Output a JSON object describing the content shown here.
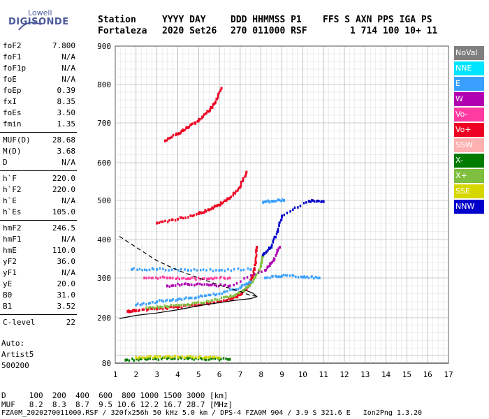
{
  "logo": {
    "line1": "Lowell",
    "line2": "DIGISONDE"
  },
  "header": {
    "row1": [
      "Station",
      "YYYY DAY",
      "DDD HHMMSS P1",
      "FFS S AXN PPS IGA PS"
    ],
    "row2": [
      "Fortaleza",
      "2020 Set26",
      "270 011000 RSF",
      "1 714 100 10+ 11"
    ]
  },
  "params": [
    {
      "name": "foF2",
      "value": "7.800"
    },
    {
      "name": "foF1",
      "value": "N/A"
    },
    {
      "name": "foF1p",
      "value": "N/A"
    },
    {
      "name": "foE",
      "value": "N/A"
    },
    {
      "name": "foEp",
      "value": "0.39"
    },
    {
      "name": "fxI",
      "value": "8.35"
    },
    {
      "name": "foEs",
      "value": "3.50"
    },
    {
      "name": "fmin",
      "value": "1.35"
    },
    {
      "name": "MUF(D)",
      "value": "28.68"
    },
    {
      "name": "M(D)",
      "value": "3.68"
    },
    {
      "name": "D",
      "value": "N/A"
    },
    {
      "name": "h`F",
      "value": "220.0"
    },
    {
      "name": "h`F2",
      "value": "220.0"
    },
    {
      "name": "h`E",
      "value": "N/A"
    },
    {
      "name": "h`Es",
      "value": "105.0"
    },
    {
      "name": "hmF2",
      "value": "246.5"
    },
    {
      "name": "hmF1",
      "value": "N/A"
    },
    {
      "name": "hmE",
      "value": "110.0"
    },
    {
      "name": "yF2",
      "value": "36.0"
    },
    {
      "name": "yF1",
      "value": "N/A"
    },
    {
      "name": "yE",
      "value": "20.0"
    },
    {
      "name": "B0",
      "value": "31.0"
    },
    {
      "name": "B1",
      "value": "3.52"
    },
    {
      "name": "C-level",
      "value": "22"
    }
  ],
  "auto": [
    "Auto:",
    "Artist5",
    "500200"
  ],
  "legend": [
    {
      "label": "NoVal",
      "color": "#7f7f7f"
    },
    {
      "label": "NNE",
      "color": "#00e5ff"
    },
    {
      "label": "E",
      "color": "#3aa0ff"
    },
    {
      "label": "W",
      "color": "#b000b0"
    },
    {
      "label": "Vo-",
      "color": "#ff3aa0"
    },
    {
      "label": "Vo+",
      "color": "#ee0022"
    },
    {
      "label": "SSW",
      "color": "#ffb0b0"
    },
    {
      "label": "X-",
      "color": "#007a00"
    },
    {
      "label": "X+",
      "color": "#7fbf3f"
    },
    {
      "label": "SSE",
      "color": "#d7d700"
    },
    {
      "label": "NNW",
      "color": "#0000cc"
    }
  ],
  "footer": {
    "row_d": "D     100  200  400  600  800 1000 1500 3000 [km]",
    "row_muf": "MUF   8.2  8.3  8.7  9.5 10.6 12.2 16.7 28.7 [MHz]",
    "info": "FZA0M_2020270011000.RSF / 320fx256h 50 kHz 5.0 km / DPS-4 FZA0M 904 / 3.9 S 321.6 E   Ion2Png 1.3.20"
  },
  "chart_data": {
    "type": "scatter",
    "x_ticks": [
      "1",
      "2",
      "3",
      "4",
      "5",
      "6",
      "7",
      "8",
      "9",
      "10",
      "11",
      "12",
      "13",
      "14",
      "15",
      "16",
      "17"
    ],
    "y_ticks": [
      "80",
      "200",
      "300",
      "400",
      "500",
      "600",
      "700",
      "800",
      "900"
    ],
    "xlim": [
      1,
      17
    ],
    "y_tick_values": [
      80,
      200,
      300,
      400,
      500,
      600,
      700,
      800,
      900
    ],
    "grid": true,
    "traces": [
      {
        "series": "Vo+",
        "points": [
          [
            1.6,
            216
          ],
          [
            2,
            218
          ],
          [
            3,
            222
          ],
          [
            4,
            226
          ],
          [
            5,
            232
          ],
          [
            6,
            240
          ],
          [
            6.6,
            248
          ],
          [
            7,
            258
          ],
          [
            7.3,
            272
          ],
          [
            7.6,
            300
          ],
          [
            7.75,
            340
          ],
          [
            7.8,
            380
          ]
        ]
      },
      {
        "series": "Vo+",
        "points": [
          [
            3,
            442
          ],
          [
            4,
            452
          ],
          [
            5,
            466
          ],
          [
            5.5,
            476
          ],
          [
            6,
            488
          ],
          [
            6.5,
            506
          ],
          [
            7,
            535
          ],
          [
            7.3,
            575
          ]
        ]
      },
      {
        "series": "Vo+",
        "points": [
          [
            3.4,
            655
          ],
          [
            4,
            672
          ],
          [
            4.5,
            688
          ],
          [
            5,
            705
          ],
          [
            5.5,
            730
          ],
          [
            5.8,
            752
          ],
          [
            6.1,
            790
          ]
        ]
      },
      {
        "series": "X+",
        "points": [
          [
            2.5,
            225
          ],
          [
            3.5,
            228
          ],
          [
            4.5,
            233
          ],
          [
            5.5,
            240
          ],
          [
            6.5,
            252
          ],
          [
            7.2,
            268
          ],
          [
            7.6,
            290
          ],
          [
            8,
            330
          ],
          [
            8.1,
            360
          ]
        ]
      },
      {
        "series": "E",
        "points": [
          [
            2,
            232
          ],
          [
            3,
            240
          ],
          [
            4,
            246
          ],
          [
            5,
            252
          ],
          [
            6,
            260
          ],
          [
            7,
            275
          ],
          [
            7.5,
            290
          ]
        ]
      },
      {
        "series": "E",
        "points": [
          [
            1.8,
            322
          ],
          [
            3,
            322
          ],
          [
            4.5,
            320
          ],
          [
            6,
            320
          ],
          [
            7.5,
            322
          ]
        ]
      },
      {
        "series": "E",
        "points": [
          [
            8.2,
            300
          ],
          [
            9,
            305
          ],
          [
            10,
            302
          ],
          [
            10.8,
            300
          ]
        ]
      },
      {
        "series": "E",
        "points": [
          [
            8.1,
            495
          ],
          [
            8.6,
            498
          ],
          [
            9.1,
            500
          ]
        ]
      },
      {
        "series": "W",
        "points": [
          [
            3.5,
            280
          ],
          [
            4.5,
            284
          ],
          [
            5.5,
            282
          ],
          [
            6.5,
            280
          ],
          [
            8.2,
            320
          ],
          [
            8.6,
            345
          ],
          [
            8.9,
            380
          ]
        ]
      },
      {
        "series": "Vo-",
        "points": [
          [
            2.4,
            300
          ],
          [
            3.5,
            300
          ],
          [
            4.5,
            298
          ],
          [
            5.5,
            298
          ],
          [
            6.5,
            300
          ]
        ]
      },
      {
        "series": "NNW",
        "points": [
          [
            8.1,
            360
          ],
          [
            8.5,
            380
          ],
          [
            8.8,
            420
          ],
          [
            9,
            460
          ],
          [
            10.3,
            498
          ],
          [
            11,
            497
          ]
        ]
      },
      {
        "series": "X-",
        "points": [
          [
            1.5,
            88
          ],
          [
            2.5,
            90
          ],
          [
            3.5,
            92
          ],
          [
            4.5,
            92
          ],
          [
            5.5,
            90
          ],
          [
            6.5,
            90
          ]
        ]
      },
      {
        "series": "SSE",
        "points": [
          [
            2,
            95
          ],
          [
            3,
            96
          ],
          [
            4,
            96
          ],
          [
            5,
            95
          ],
          [
            6,
            94
          ]
        ]
      }
    ],
    "profile_solid": [
      [
        1.2,
        198
      ],
      [
        2,
        206
      ],
      [
        3,
        212
      ],
      [
        4,
        220
      ],
      [
        5,
        230
      ],
      [
        6,
        238
      ],
      [
        6.8,
        244
      ],
      [
        7.5,
        248
      ],
      [
        7.8,
        253
      ],
      [
        7.6,
        262
      ],
      [
        7.2,
        270
      ]
    ],
    "profile_dashed": [
      [
        1.2,
        408
      ],
      [
        2,
        380
      ],
      [
        3,
        345
      ],
      [
        4,
        320
      ],
      [
        5,
        300
      ],
      [
        6,
        282
      ],
      [
        7,
        266
      ],
      [
        7.5,
        256
      ],
      [
        7.8,
        254
      ]
    ]
  }
}
